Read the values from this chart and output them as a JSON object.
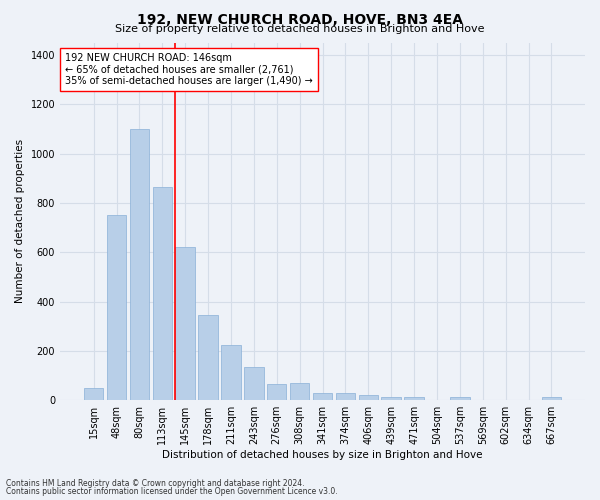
{
  "title": "192, NEW CHURCH ROAD, HOVE, BN3 4EA",
  "subtitle": "Size of property relative to detached houses in Brighton and Hove",
  "xlabel": "Distribution of detached houses by size in Brighton and Hove",
  "ylabel": "Number of detached properties",
  "footnote1": "Contains HM Land Registry data © Crown copyright and database right 2024.",
  "footnote2": "Contains public sector information licensed under the Open Government Licence v3.0.",
  "bin_labels": [
    "15sqm",
    "48sqm",
    "80sqm",
    "113sqm",
    "145sqm",
    "178sqm",
    "211sqm",
    "243sqm",
    "276sqm",
    "308sqm",
    "341sqm",
    "374sqm",
    "406sqm",
    "439sqm",
    "471sqm",
    "504sqm",
    "537sqm",
    "569sqm",
    "602sqm",
    "634sqm",
    "667sqm"
  ],
  "bar_heights": [
    50,
    750,
    1100,
    865,
    620,
    345,
    225,
    135,
    65,
    70,
    30,
    30,
    22,
    15,
    15,
    0,
    15,
    0,
    0,
    0,
    15
  ],
  "bar_color": "#b8cfe8",
  "bar_edge_color": "#8ab0d8",
  "grid_color": "#d5dde8",
  "vline_x_index": 4,
  "vline_color": "red",
  "annotation_text": "192 NEW CHURCH ROAD: 146sqm\n← 65% of detached houses are smaller (2,761)\n35% of semi-detached houses are larger (1,490) →",
  "annotation_box_color": "white",
  "annotation_box_edge_color": "red",
  "ylim": [
    0,
    1450
  ],
  "yticks": [
    0,
    200,
    400,
    600,
    800,
    1000,
    1200,
    1400
  ],
  "background_color": "#eef2f8",
  "title_fontsize": 10,
  "subtitle_fontsize": 8,
  "axis_label_fontsize": 7.5,
  "tick_fontsize": 7,
  "annotation_fontsize": 7,
  "footnote_fontsize": 5.5
}
